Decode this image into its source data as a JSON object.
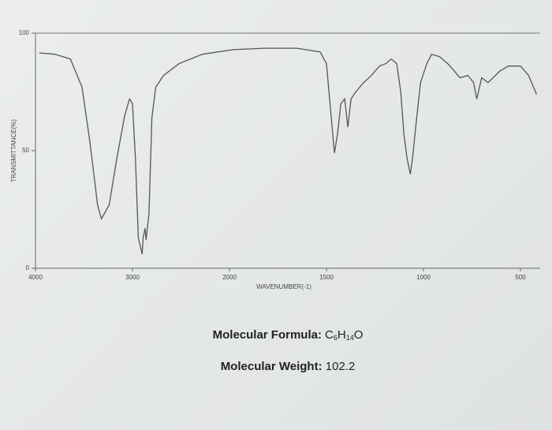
{
  "chart_data": {
    "type": "line",
    "ylabel": "TRANSMITTANCE(%)",
    "xlabel": "WAVENUMBER(-1)",
    "xlim": [
      4000,
      400
    ],
    "xticks": [
      4000,
      3000,
      2000,
      1500,
      1000,
      500
    ],
    "ylim": [
      0,
      100
    ],
    "yticks": [
      0,
      50,
      100
    ],
    "series": [
      {
        "name": "spectrum",
        "color": "#555555",
        "x": [
          3960,
          3800,
          3640,
          3520,
          3440,
          3360,
          3320,
          3240,
          3160,
          3080,
          3030,
          3000,
          2970,
          2940,
          2900,
          2890,
          2870,
          2860,
          2830,
          2800,
          2760,
          2680,
          2520,
          2280,
          1980,
          1817,
          1654,
          1532,
          1500,
          1475,
          1459,
          1443,
          1426,
          1406,
          1390,
          1373,
          1349,
          1308,
          1268,
          1227,
          1195,
          1166,
          1138,
          1117,
          1101,
          1085,
          1068,
          1056,
          1035,
          1015,
          983,
          958,
          917,
          875,
          842,
          812,
          771,
          742,
          725,
          700,
          667,
          604,
          562,
          500,
          458,
          417
        ],
        "values": [
          91.6,
          91,
          89,
          77,
          54,
          27,
          21,
          27,
          47,
          65,
          72,
          70,
          47,
          13,
          6,
          13,
          17,
          12,
          23,
          64,
          77,
          82,
          87,
          91,
          93,
          93.6,
          93.6,
          92,
          87,
          64,
          49,
          57,
          70,
          72,
          60,
          72,
          75,
          79,
          82,
          86,
          87,
          89,
          87,
          75,
          57,
          47,
          40,
          47,
          64,
          79,
          87,
          91,
          90,
          87,
          84,
          81,
          82,
          79,
          72,
          81,
          79,
          84,
          86,
          86,
          82,
          74
        ]
      }
    ]
  },
  "info": {
    "formula_label": "Molecular Formula:",
    "formula_parts": [
      "C",
      "6",
      "H",
      "14",
      "O"
    ],
    "weight_label": "Molecular Weight:",
    "weight_value": 102.2
  }
}
